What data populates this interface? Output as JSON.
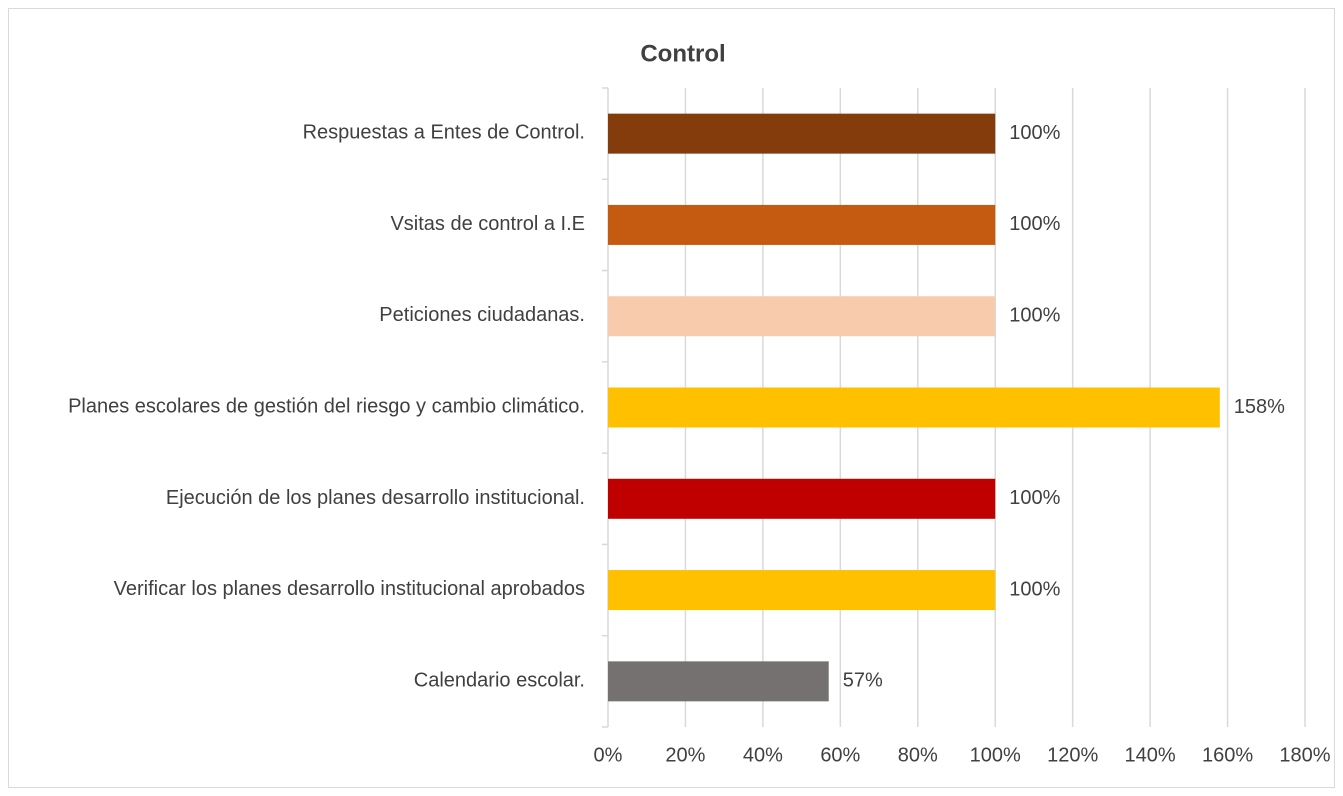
{
  "chart_data": {
    "type": "bar",
    "orientation": "horizontal",
    "title": "Control",
    "categories": [
      "Respuestas a  Entes de Control.",
      "Vsitas de control a I.E",
      "Peticiones ciudadanas.",
      "Planes escolares de gestión del riesgo y cambio climático.",
      "Ejecución de los planes desarrollo institucional.",
      "Verificar los planes  desarrollo institucional aprobados",
      "Calendario escolar."
    ],
    "values": [
      100,
      100,
      100,
      158,
      100,
      100,
      57
    ],
    "value_labels": [
      "100%",
      "100%",
      "100%",
      "158%",
      "100%",
      "100%",
      "57%"
    ],
    "colors": [
      "#843c0c",
      "#c55a11",
      "#f8cbad",
      "#ffc000",
      "#c00000",
      "#ffc000",
      "#767171"
    ],
    "xlim": [
      0,
      180
    ],
    "xticks": [
      {
        "value": 0,
        "label": "0%"
      },
      {
        "value": 20,
        "label": "20%"
      },
      {
        "value": 40,
        "label": "40%"
      },
      {
        "value": 60,
        "label": "60%"
      },
      {
        "value": 80,
        "label": "80%"
      },
      {
        "value": 100,
        "label": "100%"
      },
      {
        "value": 120,
        "label": "120%"
      },
      {
        "value": 140,
        "label": "140%"
      },
      {
        "value": 160,
        "label": "160%"
      },
      {
        "value": 180,
        "label": "180%"
      }
    ],
    "grid": true
  }
}
